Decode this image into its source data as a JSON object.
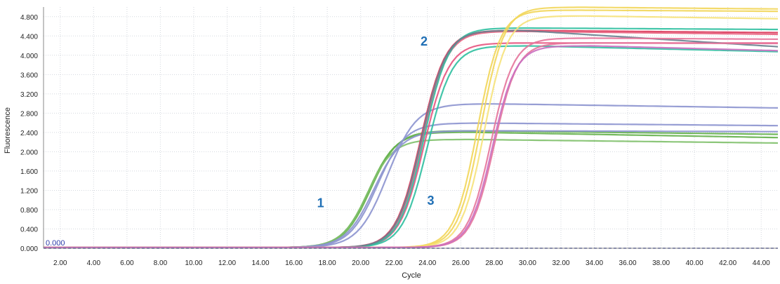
{
  "chart_data": {
    "type": "line",
    "title": "",
    "xlabel": "Cycle",
    "ylabel": "Fluorescence",
    "xlim": [
      1,
      45
    ],
    "ylim": [
      0,
      5.0
    ],
    "grid": true,
    "x_ticks": [
      "2.00",
      "4.00",
      "6.00",
      "8.00",
      "10.00",
      "12.00",
      "14.00",
      "16.00",
      "18.00",
      "20.00",
      "22.00",
      "24.00",
      "26.00",
      "28.00",
      "30.00",
      "32.00",
      "34.00",
      "36.00",
      "38.00",
      "40.00",
      "42.00",
      "44.00"
    ],
    "y_ticks": [
      "0.000",
      "0.400",
      "0.800",
      "1.200",
      "1.600",
      "2.000",
      "2.400",
      "2.800",
      "3.200",
      "3.600",
      "4.000",
      "4.400",
      "4.800"
    ],
    "threshold": {
      "value": 0.0,
      "label": "0.000",
      "color": "#1a2a9a"
    },
    "annotations": [
      {
        "text": "1",
        "x": 17.6,
        "y": 0.85
      },
      {
        "text": "2",
        "x": 23.8,
        "y": 4.2
      },
      {
        "text": "3",
        "x": 24.2,
        "y": 0.9
      }
    ],
    "series": [
      {
        "group": 1,
        "color": "#63b04a",
        "plateau": 2.42,
        "midpoint": 20.6,
        "slope": 1.25,
        "drift": -0.004
      },
      {
        "group": 1,
        "color": "#63b04a",
        "plateau": 2.39,
        "midpoint": 20.5,
        "slope": 1.25,
        "drift": -0.006
      },
      {
        "group": 1,
        "color": "#7fc06a",
        "plateau": 2.24,
        "midpoint": 20.4,
        "slope": 1.3,
        "drift": -0.004
      },
      {
        "group": 1,
        "color": "#8c93cf",
        "plateau": 2.98,
        "midpoint": 21.6,
        "slope": 1.15,
        "drift": -0.005
      },
      {
        "group": 1,
        "color": "#8c93cf",
        "plateau": 2.58,
        "midpoint": 21.0,
        "slope": 1.2,
        "drift": -0.003
      },
      {
        "group": 1,
        "color": "#8c93cf",
        "plateau": 2.42,
        "midpoint": 20.8,
        "slope": 1.2,
        "drift": -0.001
      },
      {
        "group": 2,
        "color": "#d9395a",
        "plateau": 4.5,
        "midpoint": 23.6,
        "slope": 1.35,
        "drift": -0.003
      },
      {
        "group": 2,
        "color": "#e8607e",
        "plateau": 4.48,
        "midpoint": 23.7,
        "slope": 1.35,
        "drift": -0.004
      },
      {
        "group": 2,
        "color": "#e75480",
        "plateau": 4.24,
        "midpoint": 23.8,
        "slope": 1.35,
        "drift": 0.0
      },
      {
        "group": 2,
        "color": "#2fbfa0",
        "plateau": 4.55,
        "midpoint": 23.8,
        "slope": 1.35,
        "drift": -0.002
      },
      {
        "group": 2,
        "color": "#2fbfa0",
        "plateau": 4.18,
        "midpoint": 24.0,
        "slope": 1.35,
        "drift": -0.008
      },
      {
        "group": 2,
        "color": "#6a7f8f",
        "plateau": 4.5,
        "midpoint": 23.65,
        "slope": 1.35,
        "drift": -0.022
      },
      {
        "group": 3,
        "color": "#f2d65a",
        "plateau": 4.98,
        "midpoint": 27.2,
        "slope": 1.45,
        "drift": -0.003
      },
      {
        "group": 3,
        "color": "#f2d65a",
        "plateau": 4.92,
        "midpoint": 27.0,
        "slope": 1.45,
        "drift": -0.002
      },
      {
        "group": 3,
        "color": "#f6e27a",
        "plateau": 4.8,
        "midpoint": 27.4,
        "slope": 1.45,
        "drift": -0.005
      },
      {
        "group": 3,
        "color": "#e5749b",
        "plateau": 4.34,
        "midpoint": 27.8,
        "slope": 1.45,
        "drift": -0.002
      },
      {
        "group": 3,
        "color": "#e5749b",
        "plateau": 4.24,
        "midpoint": 28.0,
        "slope": 1.45,
        "drift": -0.001
      },
      {
        "group": 3,
        "color": "#c96fc0",
        "plateau": 4.18,
        "midpoint": 27.9,
        "slope": 1.45,
        "drift": -0.009
      }
    ]
  }
}
